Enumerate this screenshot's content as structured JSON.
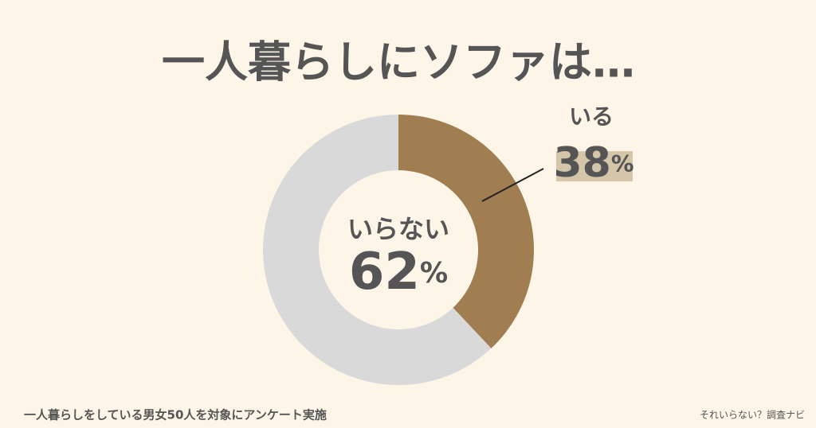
{
  "chart_data": {
    "type": "pie",
    "title": "一人暮らしにソファは…",
    "categories": [
      "いる",
      "いらない"
    ],
    "values": [
      38,
      62
    ],
    "value_labels": [
      "38%",
      "62%"
    ],
    "colors": [
      "#a07e52",
      "#d9d9d9"
    ],
    "note": "一人暮らしをしている男女50人を対象にアンケート実施",
    "source": "それいらない？調査ナビ"
  }
}
